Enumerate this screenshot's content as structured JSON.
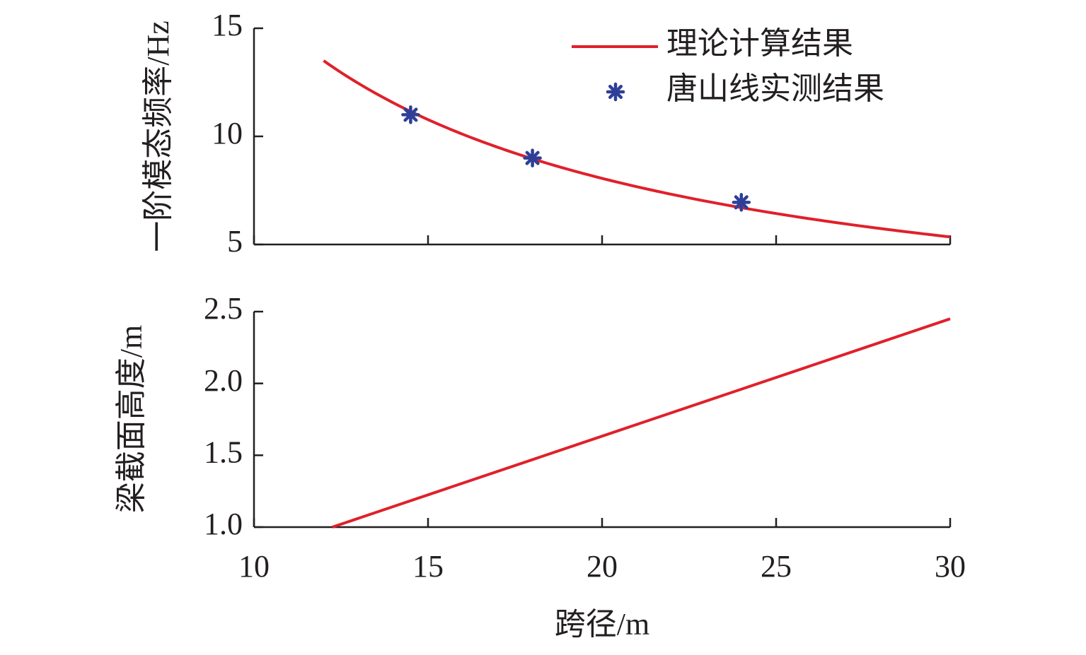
{
  "chart_data": [
    {
      "type": "line",
      "ylabel": "一阶模态频率/Hz",
      "xlim": [
        10,
        30
      ],
      "ylim": [
        5,
        15
      ],
      "x_ticks": [
        "10",
        "15",
        "20",
        "25",
        "30"
      ],
      "y_ticks": [
        "5",
        "10",
        "15"
      ],
      "legend_position": "top-right",
      "series": [
        {
          "name": "理论计算结果",
          "kind": "line",
          "color": "#e0202b",
          "x": [
            12,
            13,
            14,
            15,
            16,
            17,
            18,
            19,
            20,
            21,
            22,
            23,
            24,
            25,
            26,
            27,
            28,
            29,
            30
          ],
          "y": [
            13.5,
            12.43,
            11.57,
            10.76,
            10.07,
            9.46,
            8.92,
            8.45,
            8.03,
            7.65,
            7.3,
            6.98,
            6.69,
            6.42,
            6.18,
            5.95,
            5.74,
            5.54,
            5.35
          ]
        },
        {
          "name": "唐山线实测结果",
          "kind": "scatter",
          "marker": "asterisk",
          "color": "#2e3f98",
          "x": [
            14.5,
            18,
            24
          ],
          "y": [
            11.0,
            9.0,
            6.95
          ]
        }
      ]
    },
    {
      "type": "line",
      "xlabel": "跨径/m",
      "ylabel": "梁截面高度/m",
      "xlim": [
        10,
        30
      ],
      "ylim": [
        1.0,
        2.5
      ],
      "x_ticks": [
        "10",
        "15",
        "20",
        "25",
        "30"
      ],
      "y_ticks": [
        "1.0",
        "1.5",
        "2.0",
        "2.5"
      ],
      "series": [
        {
          "name": "",
          "kind": "line",
          "color": "#e0202b",
          "x": [
            12.25,
            30
          ],
          "y": [
            1.0,
            2.45
          ]
        }
      ]
    }
  ]
}
